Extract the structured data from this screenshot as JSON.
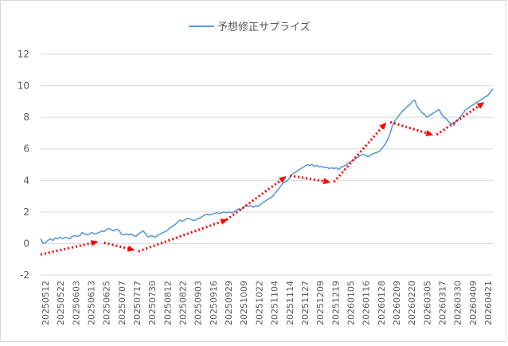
{
  "chart_data": {
    "type": "line",
    "title": "",
    "xlabel": "",
    "ylabel": "",
    "ylim": [
      -2,
      12
    ],
    "yticks": [
      -2,
      0,
      2,
      4,
      6,
      8,
      10,
      12
    ],
    "grid": "horizontal",
    "legend_position": "top",
    "x_tick_labels": [
      "20250512",
      "20250522",
      "20250603",
      "20250613",
      "20250625",
      "20250707",
      "20250717",
      "20250730",
      "20250812",
      "20250822",
      "20250903",
      "20250916",
      "20250929",
      "20251009",
      "20251022",
      "20251104",
      "20251114",
      "20251127",
      "20251209",
      "20251219",
      "20260105",
      "20260116",
      "20260128",
      "20260209",
      "20260220",
      "20260305",
      "20260317",
      "20260330",
      "20260409",
      "20260421"
    ],
    "series": [
      {
        "name": "予想修正サプライズ",
        "color": "#5b9bd5",
        "values": [
          0.3,
          0.0,
          0.05,
          0.2,
          0.3,
          0.2,
          0.35,
          0.3,
          0.4,
          0.3,
          0.4,
          0.35,
          0.3,
          0.45,
          0.5,
          0.45,
          0.5,
          0.7,
          0.6,
          0.55,
          0.6,
          0.7,
          0.6,
          0.65,
          0.7,
          0.8,
          0.75,
          0.9,
          0.95,
          0.85,
          0.8,
          0.9,
          0.85,
          0.6,
          0.55,
          0.6,
          0.55,
          0.6,
          0.5,
          0.45,
          0.6,
          0.7,
          0.8,
          0.6,
          0.4,
          0.5,
          0.45,
          0.4,
          0.55,
          0.6,
          0.7,
          0.75,
          0.85,
          1.0,
          1.1,
          1.2,
          1.35,
          1.5,
          1.4,
          1.5,
          1.6,
          1.55,
          1.5,
          1.45,
          1.55,
          1.6,
          1.7,
          1.8,
          1.85,
          1.8,
          1.85,
          1.9,
          1.95,
          1.9,
          1.95,
          2.0,
          1.95,
          2.0,
          1.95,
          2.0,
          2.1,
          2.2,
          2.15,
          2.3,
          2.4,
          2.35,
          2.4,
          2.3,
          2.4,
          2.35,
          2.5,
          2.6,
          2.7,
          2.8,
          2.9,
          3.0,
          3.2,
          3.4,
          3.6,
          3.8,
          3.9,
          4.0,
          4.2,
          4.4,
          4.5,
          4.6,
          4.7,
          4.8,
          4.9,
          5.0,
          4.95,
          5.0,
          4.9,
          4.95,
          4.85,
          4.9,
          4.8,
          4.85,
          4.75,
          4.8,
          4.75,
          4.8,
          4.7,
          4.85,
          4.9,
          5.0,
          5.1,
          5.2,
          5.3,
          5.4,
          5.5,
          5.6,
          5.65,
          5.6,
          5.5,
          5.6,
          5.7,
          5.75,
          5.8,
          5.9,
          6.1,
          6.3,
          6.6,
          7.0,
          7.5,
          7.8,
          8.0,
          8.2,
          8.4,
          8.5,
          8.7,
          8.8,
          9.0,
          9.1,
          8.7,
          8.5,
          8.3,
          8.2,
          8.0,
          8.1,
          8.2,
          8.3,
          8.4,
          8.5,
          8.2,
          8.0,
          7.9,
          7.7,
          7.6,
          7.5,
          7.8,
          7.9,
          8.1,
          8.3,
          8.5,
          8.6,
          8.7,
          8.8,
          8.9,
          9.0,
          9.1,
          9.2,
          9.3,
          9.4,
          9.6,
          9.8
        ]
      }
    ],
    "annotation_arrows": [
      {
        "from": [
          0,
          -0.7
        ],
        "to": [
          23,
          0.1
        ]
      },
      {
        "from": [
          26,
          0.05
        ],
        "to": [
          38,
          -0.4
        ]
      },
      {
        "from": [
          40,
          -0.5
        ],
        "to": [
          76,
          1.5
        ]
      },
      {
        "from": [
          76,
          1.5
        ],
        "to": [
          100,
          4.2
        ]
      },
      {
        "from": [
          102,
          4.3
        ],
        "to": [
          118,
          3.9
        ]
      },
      {
        "from": [
          120,
          3.9
        ],
        "to": [
          141,
          7.6
        ]
      },
      {
        "from": [
          143,
          7.7
        ],
        "to": [
          160,
          6.9
        ]
      },
      {
        "from": [
          162,
          6.9
        ],
        "to": [
          181,
          8.9
        ]
      }
    ]
  }
}
